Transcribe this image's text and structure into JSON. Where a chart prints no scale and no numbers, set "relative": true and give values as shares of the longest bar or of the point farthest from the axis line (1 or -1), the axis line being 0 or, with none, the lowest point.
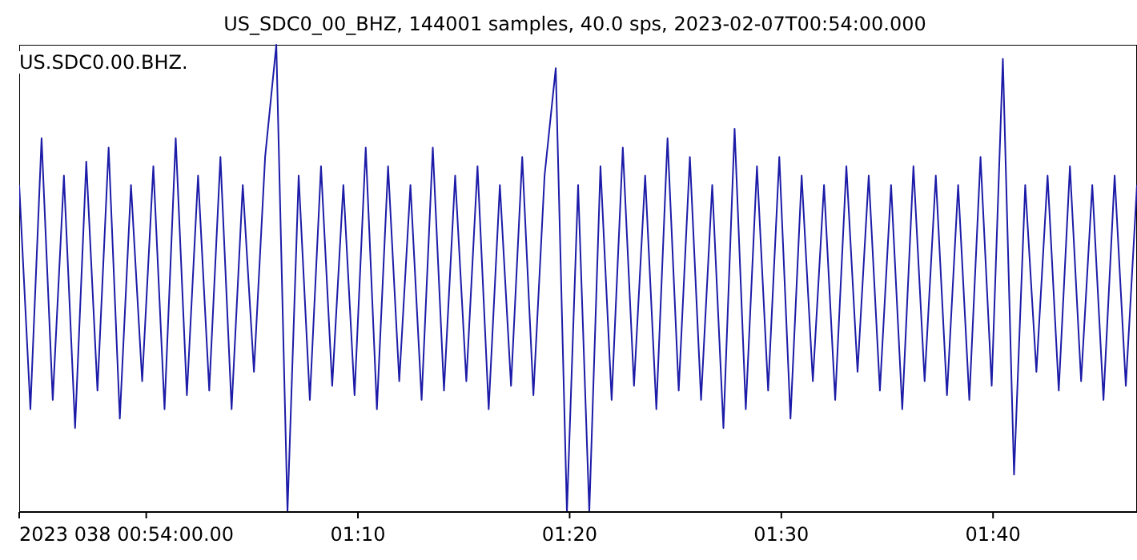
{
  "chart_data": {
    "type": "line",
    "title": "US_SDC0_00_BHZ, 144001 samples, 40.0 sps, 2023-02-07T00:54:00.000",
    "annotations": [
      "US.SDC0.00.BHZ."
    ],
    "relative": true,
    "grid": false,
    "legend": false,
    "marker": "none",
    "line_style": "solid",
    "tick_labels": "x",
    "xlim": [
      0.9,
      1.78
    ],
    "xticks": [
      {
        "value": 0.9,
        "label": "2023 038 00:54:00.00"
      },
      {
        "value": 1.0,
        "label": null
      },
      {
        "value": 1.1666667,
        "label": "01:10"
      },
      {
        "value": 1.3333333,
        "label": "01:20"
      },
      {
        "value": 1.5,
        "label": "01:30"
      },
      {
        "value": 1.6666667,
        "label": "01:40"
      }
    ],
    "series": [
      {
        "color": "#1c1ca8",
        "x": [
          0.9,
          0.9088,
          0.9176,
          0.9264,
          0.9352,
          0.944,
          0.9528,
          0.9616,
          0.9704,
          0.9792,
          0.988,
          0.9968,
          1.0056,
          1.0144,
          1.0232,
          1.032,
          1.0408,
          1.0496,
          1.0584,
          1.0672,
          1.076,
          1.0848,
          1.0936,
          1.1024,
          1.1112,
          1.12,
          1.1288,
          1.1376,
          1.1464,
          1.1552,
          1.164,
          1.1728,
          1.1816,
          1.1904,
          1.1992,
          1.208,
          1.2168,
          1.2256,
          1.2344,
          1.2432,
          1.252,
          1.2608,
          1.2696,
          1.2784,
          1.2872,
          1.296,
          1.3048,
          1.3136,
          1.3224,
          1.3312,
          1.34,
          1.3488,
          1.3576,
          1.3664,
          1.3752,
          1.384,
          1.3928,
          1.4016,
          1.4104,
          1.4192,
          1.428,
          1.4368,
          1.4456,
          1.4544,
          1.4632,
          1.472,
          1.4808,
          1.4896,
          1.4984,
          1.5072,
          1.516,
          1.5248,
          1.5336,
          1.5424,
          1.5512,
          1.56,
          1.5688,
          1.5776,
          1.5864,
          1.5952,
          1.604,
          1.6128,
          1.6216,
          1.6304,
          1.6392,
          1.648,
          1.6568,
          1.6656,
          1.6744,
          1.6832,
          1.692,
          1.7008,
          1.7096,
          1.7184,
          1.7272,
          1.736,
          1.7448,
          1.7536,
          1.7624,
          1.7712,
          1.78
        ],
        "values": [
          0.7,
          0.22,
          0.8,
          0.24,
          0.72,
          0.18,
          0.75,
          0.26,
          0.78,
          0.2,
          0.7,
          0.28,
          0.74,
          0.22,
          0.8,
          0.25,
          0.72,
          0.26,
          0.76,
          0.22,
          0.7,
          0.3,
          0.76,
          1.0,
          0.0,
          0.72,
          0.24,
          0.74,
          0.27,
          0.7,
          0.25,
          0.78,
          0.22,
          0.74,
          0.28,
          0.7,
          0.24,
          0.78,
          0.26,
          0.72,
          0.28,
          0.74,
          0.22,
          0.7,
          0.27,
          0.76,
          0.25,
          0.72,
          0.95,
          0.0,
          0.7,
          0.0,
          0.74,
          0.24,
          0.78,
          0.27,
          0.72,
          0.22,
          0.8,
          0.26,
          0.76,
          0.24,
          0.7,
          0.18,
          0.82,
          0.22,
          0.74,
          0.26,
          0.76,
          0.2,
          0.72,
          0.28,
          0.7,
          0.24,
          0.74,
          0.3,
          0.72,
          0.26,
          0.7,
          0.22,
          0.74,
          0.28,
          0.72,
          0.25,
          0.7,
          0.24,
          0.76,
          0.27,
          0.97,
          0.08,
          0.7,
          0.3,
          0.72,
          0.26,
          0.74,
          0.28,
          0.7,
          0.24,
          0.72,
          0.27,
          0.7
        ]
      }
    ]
  }
}
